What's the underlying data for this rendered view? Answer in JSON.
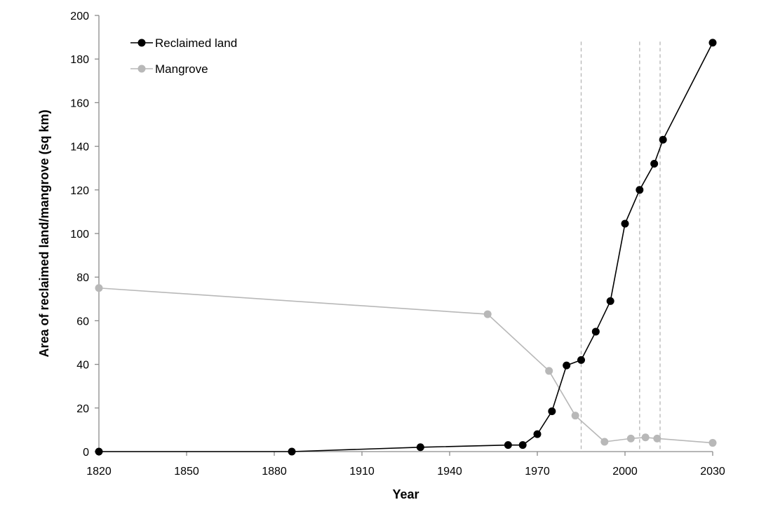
{
  "chart_data": {
    "type": "line",
    "xlabel": "Year",
    "ylabel": "Area of reclaimed land/mangrove (sq km)",
    "xlim": [
      1820,
      2030
    ],
    "ylim": [
      0,
      200
    ],
    "x_ticks": [
      1820,
      1850,
      1880,
      1910,
      1940,
      1970,
      2000,
      2030
    ],
    "y_ticks": [
      0,
      20,
      40,
      60,
      80,
      100,
      120,
      140,
      160,
      180,
      200
    ],
    "grid": false,
    "legend": "top-left",
    "reference_lines_x": [
      1985,
      2005,
      2012
    ],
    "series": [
      {
        "name": "Reclaimed land",
        "color": "#000000",
        "points": [
          [
            1820,
            0
          ],
          [
            1886,
            0
          ],
          [
            1930,
            2
          ],
          [
            1960,
            3
          ],
          [
            1965,
            3
          ],
          [
            1970,
            8
          ],
          [
            1975,
            18.5
          ],
          [
            1980,
            39.5
          ],
          [
            1985,
            42
          ],
          [
            1990,
            55
          ],
          [
            1995,
            69
          ],
          [
            2000,
            104.5
          ],
          [
            2005,
            120
          ],
          [
            2010,
            132
          ],
          [
            2013,
            143
          ],
          [
            2030,
            187.5
          ]
        ]
      },
      {
        "name": "Mangrove",
        "color": "#b8b8b8",
        "points": [
          [
            1820,
            75
          ],
          [
            1953,
            63
          ],
          [
            1974,
            37
          ],
          [
            1983,
            16.5
          ],
          [
            1993,
            4.5
          ],
          [
            2002,
            6
          ],
          [
            2007,
            6.5
          ],
          [
            2011,
            6
          ],
          [
            2030,
            4
          ]
        ]
      }
    ]
  }
}
